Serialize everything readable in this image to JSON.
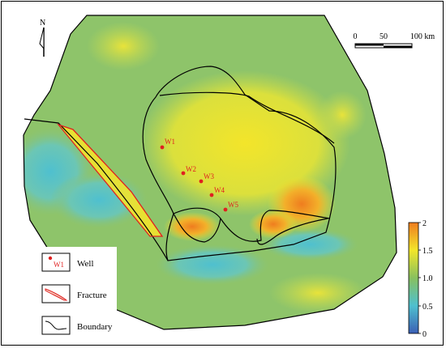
{
  "north": {
    "label": "N"
  },
  "scale_bar": {
    "ticks": [
      "0",
      "50",
      "100 km"
    ]
  },
  "colorbar": {
    "ticks": [
      "2",
      "1.5",
      "1.0",
      "0.5",
      "0"
    ],
    "min": 0,
    "max": 2
  },
  "wells": [
    {
      "label": "W1"
    },
    {
      "label": "W2"
    },
    {
      "label": "W3"
    },
    {
      "label": "W4"
    },
    {
      "label": "W5"
    }
  ],
  "legend": {
    "items": [
      {
        "symbol": "well-symbol",
        "sample": "W1",
        "label": "Well"
      },
      {
        "symbol": "fracture-symbol",
        "label": "Fracture"
      },
      {
        "symbol": "boundary-symbol",
        "label": "Boundary"
      }
    ]
  },
  "colors": {
    "low": "#3b5fb5",
    "cyan": "#4fc0cf",
    "green": "#88c05f",
    "yellow": "#f2e62a",
    "orange": "#ef7d1f",
    "well": "#e02020",
    "fracture": "#e02020",
    "boundary": "#000000"
  }
}
